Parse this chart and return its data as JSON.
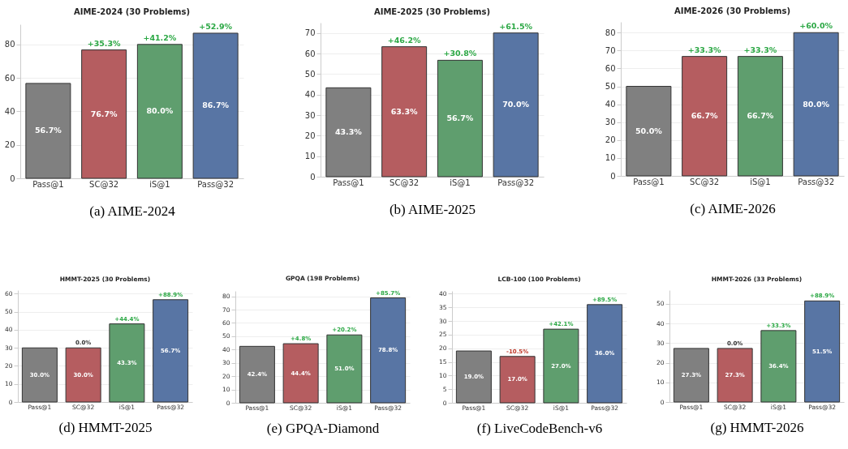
{
  "chart_data": [
    {
      "type": "bar",
      "title": "AIME-2024 (30 Problems)",
      "xlabel": "(a) AIME-2024",
      "categories": [
        "Pass@1",
        "SC@32",
        "iS@1",
        "Pass@32"
      ],
      "values": [
        56.7,
        76.7,
        80.0,
        86.7
      ],
      "colors": [
        "#808080",
        "#b55d60",
        "#5f9e6e",
        "#5875a4"
      ],
      "value_labels": [
        "56.7%",
        "76.7%",
        "80.0%",
        "86.7%"
      ],
      "ylim": [
        0,
        92
      ],
      "yticks": [
        0,
        20,
        40,
        60,
        80
      ],
      "grid": "y",
      "annotations": [
        {
          "text": "+35.3%",
          "x": "SC@32",
          "y": 76.7
        },
        {
          "text": "+41.2%",
          "x": "iS@1",
          "y": 80.0
        },
        {
          "text": "+52.9%",
          "x": "Pass@32",
          "y": 86.7
        }
      ]
    },
    {
      "type": "bar",
      "title": "AIME-2025 (30 Problems)",
      "xlabel": "(b) AIME-2025",
      "categories": [
        "Pass@1",
        "SC@32",
        "iS@1",
        "Pass@32"
      ],
      "values": [
        43.3,
        63.3,
        56.7,
        70.0
      ],
      "colors": [
        "#808080",
        "#b55d60",
        "#5f9e6e",
        "#5875a4"
      ],
      "value_labels": [
        "43.3%",
        "63.3%",
        "56.7%",
        "70.0%"
      ],
      "ylim": [
        0,
        75
      ],
      "yticks": [
        0,
        10,
        20,
        30,
        40,
        50,
        60,
        70
      ],
      "grid": "y",
      "annotations": [
        {
          "text": "+46.2%",
          "x": "SC@32",
          "y": 63.3
        },
        {
          "text": "+30.8%",
          "x": "iS@1",
          "y": 56.7
        },
        {
          "text": "+61.5%",
          "x": "Pass@32",
          "y": 70.0
        }
      ]
    },
    {
      "type": "bar",
      "title": "AIME-2026 (30 Problems)",
      "xlabel": "(c) AIME-2026",
      "categories": [
        "Pass@1",
        "SC@32",
        "iS@1",
        "Pass@32"
      ],
      "values": [
        50.0,
        66.7,
        66.7,
        80.0
      ],
      "colors": [
        "#808080",
        "#b55d60",
        "#5f9e6e",
        "#5875a4"
      ],
      "value_labels": [
        "50.0%",
        "66.7%",
        "66.7%",
        "80.0%"
      ],
      "ylim": [
        0,
        86
      ],
      "yticks": [
        0,
        10,
        20,
        30,
        40,
        50,
        60,
        70,
        80
      ],
      "grid": "y",
      "annotations": [
        {
          "text": "+33.3%",
          "x": "SC@32",
          "y": 66.7
        },
        {
          "text": "+33.3%",
          "x": "iS@1",
          "y": 66.7
        },
        {
          "text": "+60.0%",
          "x": "Pass@32",
          "y": 80.0
        }
      ]
    },
    {
      "type": "bar",
      "title": "HMMT-2025 (30 Problems)",
      "xlabel": "(d) HMMT-2025",
      "categories": [
        "Pass@1",
        "SC@32",
        "iS@1",
        "Pass@32"
      ],
      "values": [
        30.0,
        30.0,
        43.3,
        56.7
      ],
      "colors": [
        "#808080",
        "#b55d60",
        "#5f9e6e",
        "#5875a4"
      ],
      "value_labels": [
        "30.0%",
        "30.0%",
        "43.3%",
        "56.7%"
      ],
      "ylim": [
        0,
        62
      ],
      "yticks": [
        0,
        10,
        20,
        30,
        40,
        50,
        60
      ],
      "grid": "y",
      "annotations": [
        {
          "text": "0.0%",
          "x": "SC@32",
          "y": 30.0
        },
        {
          "text": "+44.4%",
          "x": "iS@1",
          "y": 43.3
        },
        {
          "text": "+88.9%",
          "x": "Pass@32",
          "y": 56.7
        }
      ]
    },
    {
      "type": "bar",
      "title": "GPQA (198 Problems)",
      "xlabel": "(e) GPQA-Diamond",
      "categories": [
        "Pass@1",
        "SC@32",
        "iS@1",
        "Pass@32"
      ],
      "values": [
        42.4,
        44.4,
        51.0,
        78.8
      ],
      "colors": [
        "#808080",
        "#b55d60",
        "#5f9e6e",
        "#5875a4"
      ],
      "value_labels": [
        "42.4%",
        "44.4%",
        "51.0%",
        "78.8%"
      ],
      "ylim": [
        0,
        84
      ],
      "yticks": [
        0,
        10,
        20,
        30,
        40,
        50,
        60,
        70,
        80
      ],
      "grid": "y",
      "annotations": [
        {
          "text": "+4.8%",
          "x": "SC@32",
          "y": 44.4
        },
        {
          "text": "+20.2%",
          "x": "iS@1",
          "y": 51.0
        },
        {
          "text": "+85.7%",
          "x": "Pass@32",
          "y": 78.8
        }
      ]
    },
    {
      "type": "bar",
      "title": "LCB-100 (100 Problems)",
      "xlabel": "(f) LiveCodeBench-v6",
      "categories": [
        "Pass@1",
        "SC@32",
        "iS@1",
        "Pass@32"
      ],
      "values": [
        19.0,
        17.0,
        27.0,
        36.0
      ],
      "colors": [
        "#808080",
        "#b55d60",
        "#5f9e6e",
        "#5875a4"
      ],
      "value_labels": [
        "19.0%",
        "17.0%",
        "27.0%",
        "36.0%"
      ],
      "ylim": [
        0,
        41
      ],
      "yticks": [
        0,
        5,
        10,
        15,
        20,
        25,
        30,
        35,
        40
      ],
      "grid": "y",
      "annotations": [
        {
          "text": "-10.5%",
          "x": "SC@32",
          "y": 17.0
        },
        {
          "text": "+42.1%",
          "x": "iS@1",
          "y": 27.0
        },
        {
          "text": "+89.5%",
          "x": "Pass@32",
          "y": 36.0
        }
      ]
    },
    {
      "type": "bar",
      "title": "HMMT-2026 (33 Problems)",
      "xlabel": "(g) HMMT-2026",
      "categories": [
        "Pass@1",
        "SC@32",
        "iS@1",
        "Pass@32"
      ],
      "values": [
        27.3,
        27.3,
        36.4,
        51.5
      ],
      "colors": [
        "#808080",
        "#b55d60",
        "#5f9e6e",
        "#5875a4"
      ],
      "value_labels": [
        "27.3%",
        "27.3%",
        "36.4%",
        "51.5%"
      ],
      "ylim": [
        0,
        57
      ],
      "yticks": [
        0,
        10,
        20,
        30,
        40,
        50
      ],
      "grid": "y",
      "annotations": [
        {
          "text": "0.0%",
          "x": "SC@32",
          "y": 27.3
        },
        {
          "text": "+33.3%",
          "x": "iS@1",
          "y": 36.4
        },
        {
          "text": "+88.9%",
          "x": "Pass@32",
          "y": 51.5
        }
      ]
    }
  ]
}
